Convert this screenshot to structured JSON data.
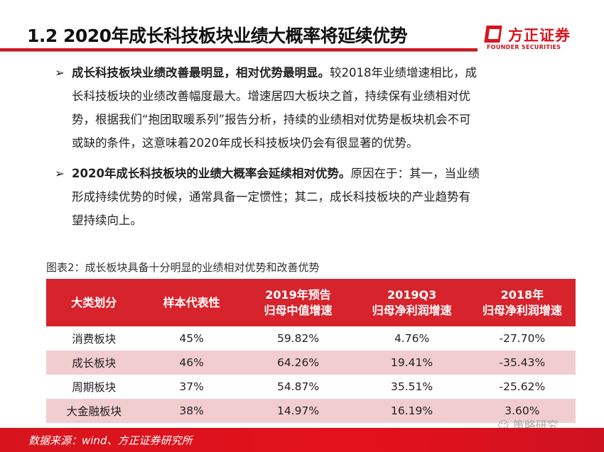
{
  "title": "1.2 2020年成长科技板块业绩大概率将延续优势",
  "logo": {
    "cn": "方正证券",
    "en": "FOUNDER SECURITIES"
  },
  "bullets": [
    {
      "bold": "成长科技板块业绩改善最明显，相对优势最明显。",
      "text": "较2018年业绩增速相比，成长科技板块的业绩改善幅度最大。增速居四大板块之首，持续保有业绩相对优势，根据我们“抱团取暖系列”报告分析，持续的业绩相对优势是板块机会不可或缺的条件，这意味着2020年成长科技板块仍会有很显著的优势。"
    },
    {
      "bold": "2020年成长科技板块的业绩大概率会延续相对优势。",
      "text": "原因在于：其一，当业绩形成持续优势的时候，通常具备一定惯性；其二，成长科技板块的产业趋势有望持续向上。"
    }
  ],
  "caption": "图表2：成长板块具备十分明显的业绩相对优势和改善优势",
  "table": {
    "headers": [
      [
        "大类划分"
      ],
      [
        "样本代表性"
      ],
      [
        "2019年预告",
        "归母中值增速"
      ],
      [
        "2019Q3",
        "归母净利润增速"
      ],
      [
        "2018年",
        "归母净利润增速"
      ]
    ],
    "rows": [
      [
        "消费板块",
        "45%",
        "59.82%",
        "4.76%",
        "-27.70%"
      ],
      [
        "成长板块",
        "46%",
        "64.26%",
        "19.41%",
        "-35.43%"
      ],
      [
        "周期板块",
        "37%",
        "54.87%",
        "35.51%",
        "-25.62%"
      ],
      [
        "大金融板块",
        "38%",
        "14.97%",
        "16.19%",
        "3.60%"
      ]
    ]
  },
  "watermark": "策略研究",
  "source": "数据来源：wind、方正证券研究所"
}
